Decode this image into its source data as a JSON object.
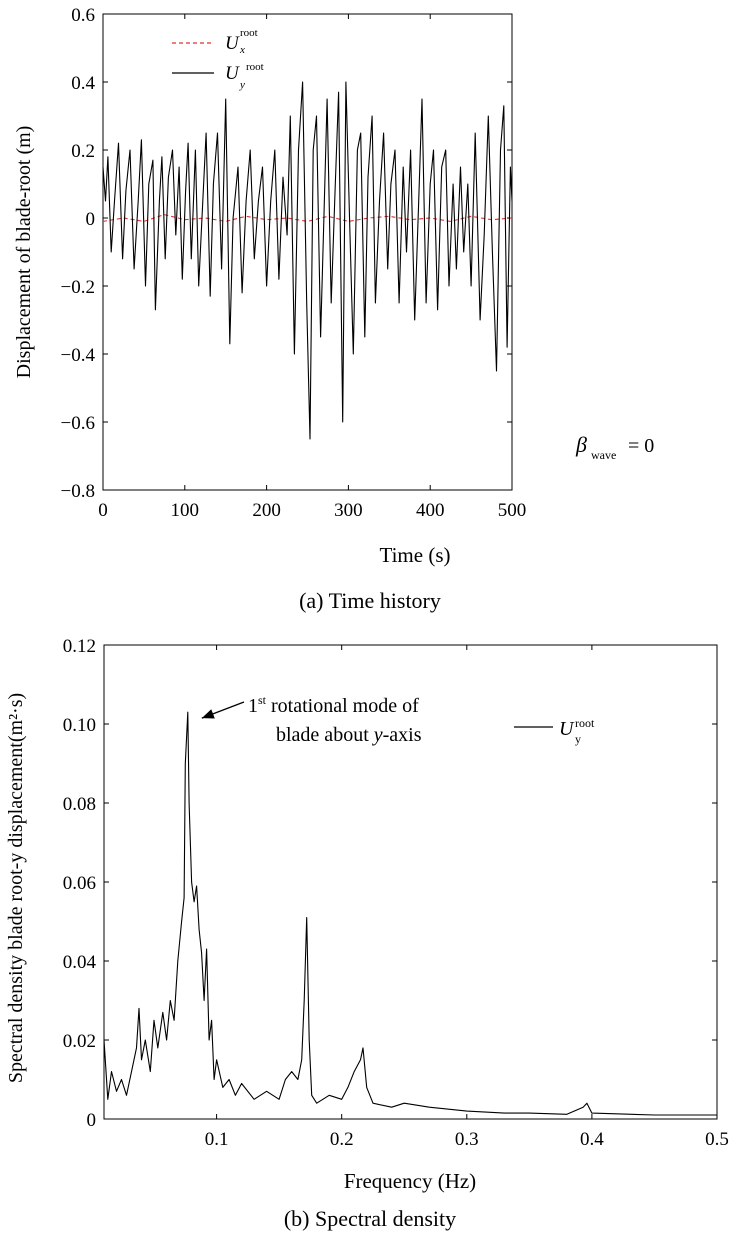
{
  "chart_data": [
    {
      "type": "line",
      "caption": "(a) Time history",
      "xlabel": "Time (s)",
      "ylabel": "Displacement of blade-root (m)",
      "xlim": [
        0,
        500
      ],
      "ylim": [
        -0.8,
        0.6
      ],
      "xticks": [
        "0",
        "100",
        "200",
        "300",
        "400",
        "500"
      ],
      "yticks": [
        "0.6",
        "0.4",
        "0.2",
        "0",
        "−0.2",
        "−0.4",
        "−0.6",
        "−0.8"
      ],
      "legend_position": "top-left",
      "annotation": {
        "symbol": "β",
        "subscript": "wave",
        "text": "= 0"
      },
      "series": [
        {
          "name": "U_x^root",
          "legend": {
            "main": "U",
            "sub": "x",
            "sup": "root"
          },
          "color": "#e03030",
          "dash": true,
          "points": [
            [
              0,
              -0.01
            ],
            [
              25,
              0.0
            ],
            [
              50,
              -0.01
            ],
            [
              75,
              0.01
            ],
            [
              100,
              -0.005
            ],
            [
              125,
              0.0
            ],
            [
              150,
              -0.01
            ],
            [
              175,
              0.005
            ],
            [
              200,
              -0.005
            ],
            [
              225,
              0.0
            ],
            [
              250,
              -0.01
            ],
            [
              275,
              0.005
            ],
            [
              300,
              -0.01
            ],
            [
              325,
              0.0
            ],
            [
              350,
              0.005
            ],
            [
              375,
              -0.005
            ],
            [
              400,
              0.0
            ],
            [
              425,
              -0.01
            ],
            [
              450,
              0.005
            ],
            [
              475,
              -0.005
            ],
            [
              500,
              0.0
            ]
          ]
        },
        {
          "name": "U_y^root",
          "legend": {
            "main": "U",
            "sub": "y",
            "sup": "root"
          },
          "color": "#000000",
          "dash": false,
          "points": [
            [
              0,
              0.15
            ],
            [
              3,
              0.05
            ],
            [
              6,
              0.18
            ],
            [
              10,
              -0.1
            ],
            [
              14,
              0.05
            ],
            [
              19,
              0.22
            ],
            [
              24,
              -0.12
            ],
            [
              28,
              0.08
            ],
            [
              33,
              0.2
            ],
            [
              38,
              -0.15
            ],
            [
              43,
              0.05
            ],
            [
              47,
              0.23
            ],
            [
              52,
              -0.2
            ],
            [
              56,
              0.1
            ],
            [
              61,
              0.17
            ],
            [
              64,
              -0.27
            ],
            [
              69,
              0.05
            ],
            [
              72,
              0.18
            ],
            [
              76,
              -0.12
            ],
            [
              80,
              0.12
            ],
            [
              85,
              0.2
            ],
            [
              89,
              -0.05
            ],
            [
              93,
              0.15
            ],
            [
              97,
              -0.18
            ],
            [
              101,
              0.08
            ],
            [
              104,
              0.22
            ],
            [
              108,
              -0.12
            ],
            [
              113,
              0.2
            ],
            [
              117,
              -0.2
            ],
            [
              122,
              0.05
            ],
            [
              126,
              0.25
            ],
            [
              131,
              -0.23
            ],
            [
              135,
              0.1
            ],
            [
              140,
              0.25
            ],
            [
              145,
              -0.15
            ],
            [
              150,
              0.35
            ],
            [
              155,
              -0.37
            ],
            [
              159,
              0.0
            ],
            [
              165,
              0.15
            ],
            [
              170,
              -0.22
            ],
            [
              175,
              0.05
            ],
            [
              180,
              0.2
            ],
            [
              185,
              -0.12
            ],
            [
              190,
              0.05
            ],
            [
              195,
              0.15
            ],
            [
              200,
              -0.2
            ],
            [
              205,
              0.05
            ],
            [
              210,
              0.2
            ],
            [
              215,
              -0.18
            ],
            [
              220,
              0.12
            ],
            [
              225,
              -0.05
            ],
            [
              229,
              0.3
            ],
            [
              234,
              -0.4
            ],
            [
              239,
              0.2
            ],
            [
              244,
              0.4
            ],
            [
              249,
              -0.25
            ],
            [
              253,
              -0.65
            ],
            [
              257,
              0.2
            ],
            [
              261,
              0.3
            ],
            [
              266,
              -0.35
            ],
            [
              270,
              0.0
            ],
            [
              274,
              0.35
            ],
            [
              279,
              -0.25
            ],
            [
              284,
              0.1
            ],
            [
              288,
              0.37
            ],
            [
              293,
              -0.6
            ],
            [
              297,
              0.4
            ],
            [
              302,
              -0.05
            ],
            [
              306,
              -0.4
            ],
            [
              311,
              0.2
            ],
            [
              315,
              0.25
            ],
            [
              320,
              -0.35
            ],
            [
              324,
              0.12
            ],
            [
              329,
              0.3
            ],
            [
              333,
              -0.25
            ],
            [
              338,
              0.05
            ],
            [
              343,
              0.25
            ],
            [
              348,
              -0.15
            ],
            [
              352,
              0.1
            ],
            [
              357,
              0.2
            ],
            [
              362,
              -0.25
            ],
            [
              367,
              0.15
            ],
            [
              371,
              -0.1
            ],
            [
              376,
              0.2
            ],
            [
              381,
              -0.3
            ],
            [
              386,
              0.05
            ],
            [
              390,
              0.35
            ],
            [
              395,
              -0.25
            ],
            [
              400,
              0.1
            ],
            [
              404,
              0.2
            ],
            [
              409,
              -0.27
            ],
            [
              414,
              0.15
            ],
            [
              419,
              0.2
            ],
            [
              423,
              -0.2
            ],
            [
              428,
              0.1
            ],
            [
              432,
              -0.15
            ],
            [
              437,
              0.15
            ],
            [
              441,
              -0.1
            ],
            [
              446,
              0.1
            ],
            [
              450,
              -0.2
            ],
            [
              455,
              0.25
            ],
            [
              461,
              -0.3
            ],
            [
              466,
              -0.05
            ],
            [
              471,
              0.3
            ],
            [
              476,
              -0.1
            ],
            [
              481,
              -0.45
            ],
            [
              486,
              0.2
            ],
            [
              490,
              0.33
            ],
            [
              494,
              -0.38
            ],
            [
              498,
              0.15
            ],
            [
              500,
              0.05
            ]
          ]
        }
      ]
    },
    {
      "type": "line",
      "caption": "(b) Spectral density",
      "xlabel": "Frequency (Hz)",
      "ylabel": "Spectral density blade root-y displacement(m²·s)",
      "xlim": [
        0.01,
        0.5
      ],
      "ylim": [
        0,
        0.12
      ],
      "xticks": [
        "0.1",
        "0.2",
        "0.3",
        "0.4",
        "0.5"
      ],
      "yticks": [
        "0.12",
        "0.10",
        "0.08",
        "0.06",
        "0.04",
        "0.02",
        "0"
      ],
      "legend_position": "top-right",
      "annotation": {
        "line1_sup": "st",
        "line1_pre": "1",
        "line1_text": "rotational mode of",
        "line2_pre": "blade about",
        "line2_var": "y",
        "line2_post": "-axis",
        "target": [
          0.077,
          0.103
        ]
      },
      "series": [
        {
          "name": "U_y^root",
          "legend": {
            "main": "U",
            "sub": "y",
            "sup": "root"
          },
          "color": "#000000",
          "points": [
            [
              0.01,
              0.02
            ],
            [
              0.013,
              0.005
            ],
            [
              0.016,
              0.012
            ],
            [
              0.02,
              0.007
            ],
            [
              0.024,
              0.01
            ],
            [
              0.028,
              0.006
            ],
            [
              0.032,
              0.012
            ],
            [
              0.036,
              0.018
            ],
            [
              0.038,
              0.028
            ],
            [
              0.04,
              0.015
            ],
            [
              0.043,
              0.02
            ],
            [
              0.047,
              0.012
            ],
            [
              0.05,
              0.025
            ],
            [
              0.053,
              0.018
            ],
            [
              0.057,
              0.027
            ],
            [
              0.06,
              0.02
            ],
            [
              0.063,
              0.03
            ],
            [
              0.066,
              0.025
            ],
            [
              0.069,
              0.04
            ],
            [
              0.072,
              0.05
            ],
            [
              0.074,
              0.056
            ],
            [
              0.075,
              0.09
            ],
            [
              0.077,
              0.103
            ],
            [
              0.078,
              0.08
            ],
            [
              0.08,
              0.06
            ],
            [
              0.082,
              0.055
            ],
            [
              0.084,
              0.059
            ],
            [
              0.086,
              0.048
            ],
            [
              0.088,
              0.042
            ],
            [
              0.09,
              0.03
            ],
            [
              0.092,
              0.043
            ],
            [
              0.094,
              0.02
            ],
            [
              0.096,
              0.025
            ],
            [
              0.098,
              0.01
            ],
            [
              0.1,
              0.015
            ],
            [
              0.105,
              0.008
            ],
            [
              0.11,
              0.01
            ],
            [
              0.115,
              0.006
            ],
            [
              0.12,
              0.009
            ],
            [
              0.13,
              0.005
            ],
            [
              0.14,
              0.007
            ],
            [
              0.15,
              0.005
            ],
            [
              0.155,
              0.01
            ],
            [
              0.16,
              0.012
            ],
            [
              0.165,
              0.01
            ],
            [
              0.168,
              0.015
            ],
            [
              0.17,
              0.03
            ],
            [
              0.172,
              0.051
            ],
            [
              0.174,
              0.02
            ],
            [
              0.176,
              0.006
            ],
            [
              0.18,
              0.004
            ],
            [
              0.19,
              0.006
            ],
            [
              0.2,
              0.005
            ],
            [
              0.205,
              0.008
            ],
            [
              0.21,
              0.012
            ],
            [
              0.215,
              0.015
            ],
            [
              0.217,
              0.018
            ],
            [
              0.22,
              0.008
            ],
            [
              0.225,
              0.004
            ],
            [
              0.24,
              0.003
            ],
            [
              0.25,
              0.004
            ],
            [
              0.27,
              0.003
            ],
            [
              0.3,
              0.002
            ],
            [
              0.33,
              0.0015
            ],
            [
              0.35,
              0.0015
            ],
            [
              0.38,
              0.0012
            ],
            [
              0.393,
              0.003
            ],
            [
              0.396,
              0.004
            ],
            [
              0.4,
              0.0015
            ],
            [
              0.45,
              0.001
            ],
            [
              0.5,
              0.001
            ]
          ]
        }
      ]
    }
  ]
}
